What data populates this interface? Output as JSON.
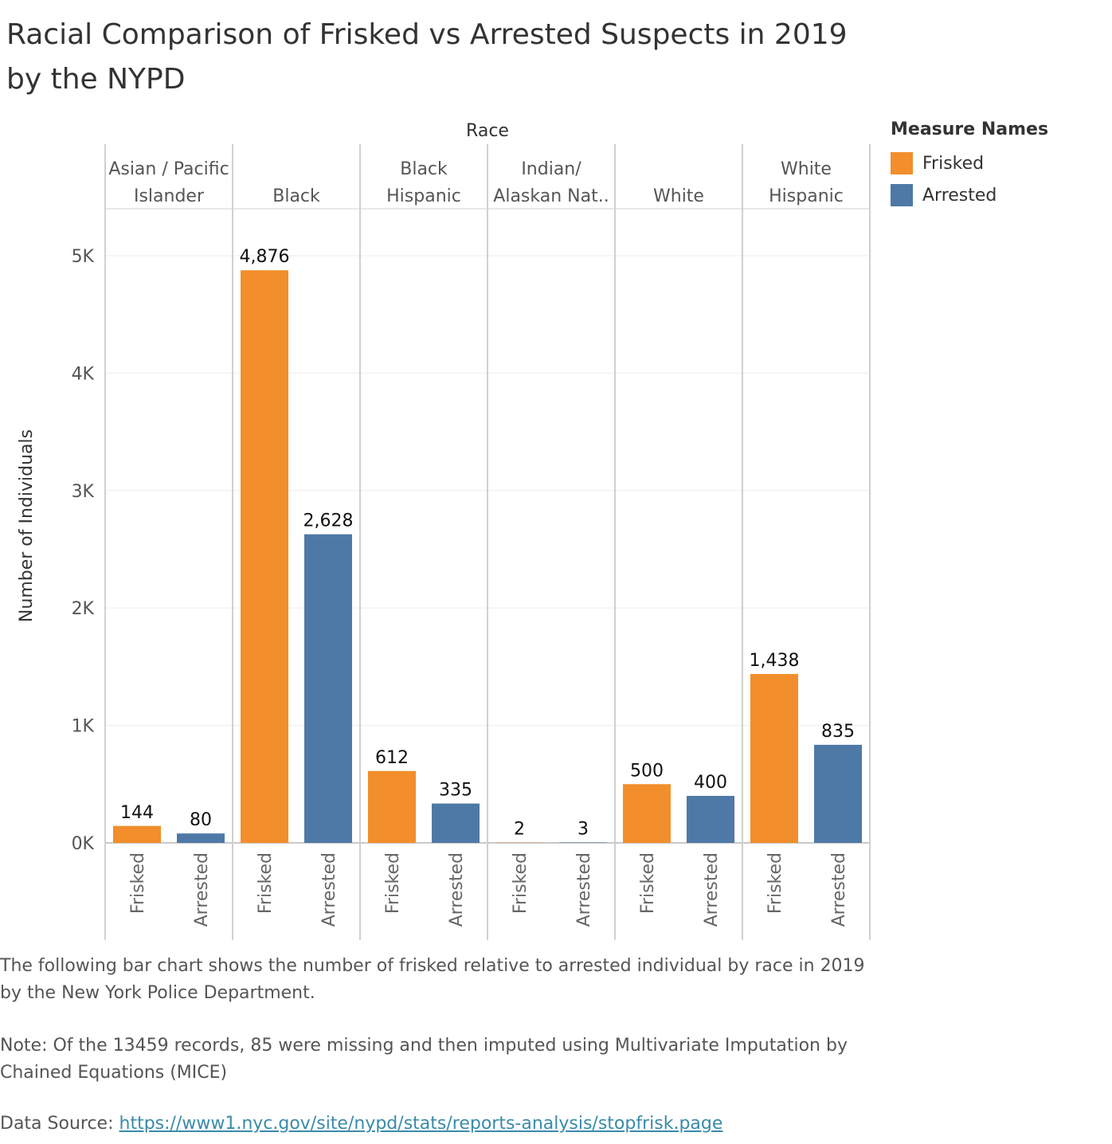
{
  "title": "Racial Comparison of Frisked vs Arrested Suspects  in 2019 by the NYPD",
  "legend": {
    "title": "Measure Names",
    "items": [
      {
        "label": "Frisked",
        "color": "#f28e2b"
      },
      {
        "label": "Arrested",
        "color": "#4e79a7"
      }
    ]
  },
  "captions": {
    "description": "The following bar chart shows the number of frisked relative to arrested individual by race in 2019 by the New York Police Department.",
    "note": "Note: Of the 13459 records, 85 were missing and then imputed using Multivariate Imputation by Chained Equations (MICE)",
    "source_prefix": "Data Source: ",
    "source_link": "https://www1.nyc.gov/site/nypd/stats/reports-analysis/stopfrisk.page"
  },
  "chart_data": {
    "type": "bar",
    "column_header": "Race",
    "ylabel": "Number of Individuals",
    "ylim": [
      0,
      5400
    ],
    "yticks": [
      0,
      1000,
      2000,
      3000,
      4000,
      5000
    ],
    "ytick_labels": [
      "0K",
      "1K",
      "2K",
      "3K",
      "4K",
      "5K"
    ],
    "grid": true,
    "legend_position": "top-right",
    "categories": [
      {
        "label_lines": [
          "Asian / Pacific",
          "Islander"
        ]
      },
      {
        "label_lines": [
          "Black"
        ]
      },
      {
        "label_lines": [
          "Black",
          "Hispanic"
        ]
      },
      {
        "label_lines": [
          "Indian/",
          "Alaskan Nat.."
        ]
      },
      {
        "label_lines": [
          "White"
        ]
      },
      {
        "label_lines": [
          "White",
          "Hispanic"
        ]
      }
    ],
    "series": [
      {
        "name": "Frisked",
        "color": "#f28e2b",
        "values": [
          144,
          4876,
          612,
          2,
          500,
          1438
        ],
        "labels": [
          "144",
          "4,876",
          "612",
          "2",
          "500",
          "1,438"
        ]
      },
      {
        "name": "Arrested",
        "color": "#4e79a7",
        "values": [
          80,
          2628,
          335,
          3,
          400,
          835
        ],
        "labels": [
          "80",
          "2,628",
          "335",
          "3",
          "400",
          "835"
        ]
      }
    ]
  }
}
